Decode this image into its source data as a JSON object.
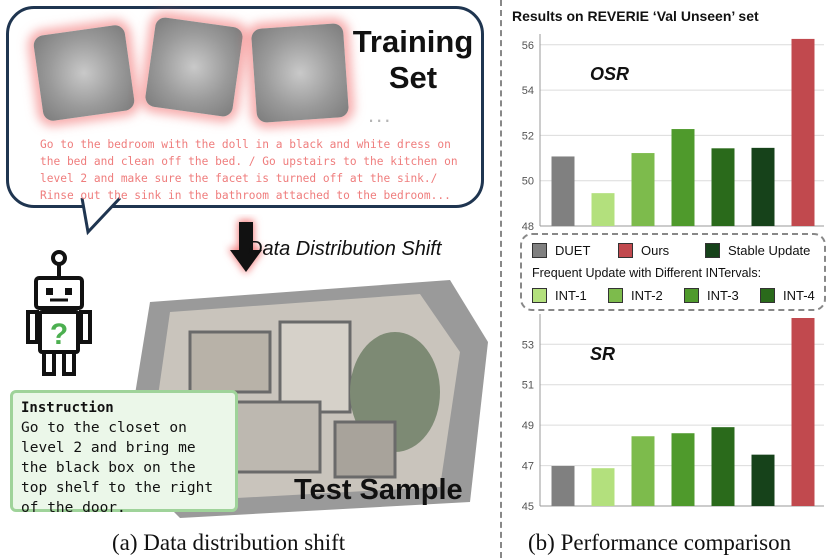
{
  "left_panel": {
    "training_title": "Training\nSet",
    "ellipsis": "...",
    "training_instruction": "Go to the bedroom  with the doll in a black and white dress on the bed and clean off the bed. / Go upstairs to the kitchen on level 2 and make sure the facet is turned off at the sink./ Rinse out the sink in the bathroom attached to the bedroom...",
    "shift_label": "Data Distribution Shift",
    "instruction_heading": "Instruction",
    "instruction_text": "Go to the closet on level 2 and bring me the black box on the top shelf to the right of the door.",
    "test_sample": "Test Sample",
    "caption": "(a) Data distribution shift",
    "robot_icon": "robot-icon",
    "arrow_icon": "down-arrow-icon"
  },
  "right_panel": {
    "title": "Results on REVERIE ‘Val Unseen’ set",
    "caption": "(b) Performance comparison",
    "legend": {
      "row1": [
        "DUET",
        "Ours",
        "Stable Update"
      ],
      "subtitle": "Frequent Update with Different INTervals:",
      "row2": [
        "INT-1",
        "INT-2",
        "INT-3",
        "INT-4"
      ]
    }
  },
  "colors": {
    "DUET": "#808080",
    "Ours": "#c1494e",
    "INT-1": "#b3e07d",
    "INT-2": "#7dbb4c",
    "INT-3": "#4f9a2c",
    "INT-4": "#2a6a1b",
    "Stable Update": "#16421a"
  },
  "chart_data": [
    {
      "type": "bar",
      "title": "OSR",
      "categories": [
        "DUET",
        "INT-1",
        "INT-2",
        "INT-3",
        "INT-4",
        "Stable Update",
        "Ours"
      ],
      "values": [
        51.07,
        49.45,
        51.22,
        52.28,
        51.43,
        51.45,
        56.26
      ],
      "ylim": [
        48,
        56.3
      ],
      "yticks": [
        48,
        50,
        52,
        54,
        56
      ],
      "grid": true
    },
    {
      "type": "bar",
      "title": "SR",
      "categories": [
        "DUET",
        "INT-1",
        "INT-2",
        "INT-3",
        "INT-4",
        "Stable Update",
        "Ours"
      ],
      "values": [
        46.98,
        46.87,
        48.45,
        48.6,
        48.9,
        47.54,
        54.3
      ],
      "ylim": [
        45,
        54.3
      ],
      "yticks": [
        45,
        47,
        49,
        51,
        53
      ],
      "grid": true
    }
  ]
}
